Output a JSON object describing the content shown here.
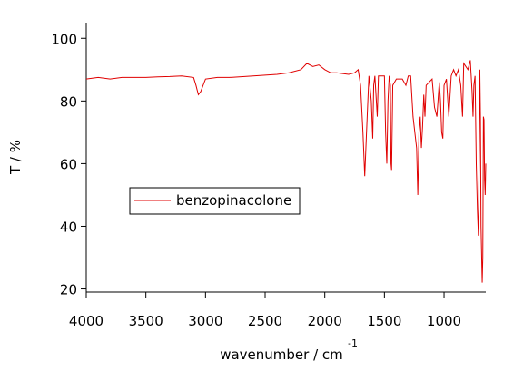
{
  "chart_data": {
    "type": "line",
    "xlabel": "wavenumber / cm",
    "xlabel_superscript": "-1",
    "ylabel": "T / %",
    "xlim": [
      4000,
      650
    ],
    "ylim": [
      19,
      105
    ],
    "xticks": [
      4000,
      3500,
      3000,
      2500,
      2000,
      1500,
      1000
    ],
    "yticks": [
      20,
      40,
      60,
      80,
      100
    ],
    "legend": "left",
    "x": [
      4000,
      3900,
      3800,
      3700,
      3600,
      3500,
      3400,
      3300,
      3200,
      3100,
      3080,
      3060,
      3040,
      3020,
      3000,
      2900,
      2800,
      2600,
      2400,
      2300,
      2200,
      2150,
      2100,
      2050,
      2000,
      1950,
      1900,
      1800,
      1750,
      1720,
      1700,
      1680,
      1665,
      1650,
      1630,
      1610,
      1598,
      1590,
      1580,
      1560,
      1550,
      1500,
      1490,
      1480,
      1470,
      1460,
      1450,
      1445,
      1440,
      1430,
      1400,
      1350,
      1320,
      1300,
      1280,
      1260,
      1230,
      1220,
      1210,
      1200,
      1190,
      1180,
      1170,
      1160,
      1150,
      1100,
      1080,
      1060,
      1040,
      1030,
      1020,
      1010,
      1000,
      980,
      960,
      940,
      920,
      900,
      880,
      860,
      845,
      835,
      800,
      780,
      765,
      757,
      750,
      740,
      730,
      720,
      712,
      705,
      700,
      695,
      690,
      680,
      675,
      670,
      665,
      660,
      655,
      650
    ],
    "series": [
      {
        "name": "benzopinacolone",
        "color": "#e00000",
        "values": [
          87,
          87.5,
          87,
          87.5,
          87.5,
          87.5,
          87.7,
          87.8,
          88,
          87.5,
          85,
          82,
          83,
          85,
          87,
          87.5,
          87.5,
          88,
          88.5,
          89,
          90,
          92,
          91,
          91.5,
          90,
          89,
          89,
          88.5,
          89,
          90,
          85,
          70,
          56,
          70,
          88,
          80,
          68,
          85,
          88,
          75,
          88,
          88,
          70,
          60,
          80,
          88,
          85,
          60,
          58,
          85,
          87,
          87,
          85,
          88,
          88,
          75,
          65,
          50,
          70,
          75,
          65,
          72,
          82,
          75,
          85,
          87,
          78,
          75,
          86,
          80,
          70,
          68,
          85,
          87,
          75,
          88,
          90,
          88,
          90,
          85,
          75,
          92,
          90,
          93,
          83,
          75,
          85,
          88,
          60,
          45,
          37,
          65,
          90,
          75,
          40,
          22,
          30,
          75,
          74,
          55,
          50,
          60
        ]
      }
    ]
  }
}
